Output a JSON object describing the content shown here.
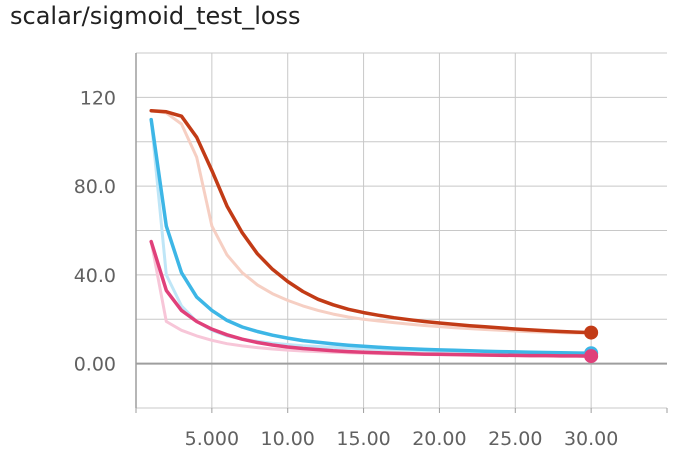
{
  "chart_data": {
    "type": "line",
    "title": "scalar/sigmoid_test_loss",
    "xlabel": "",
    "ylabel": "",
    "xlim": [
      0,
      35
    ],
    "ylim": [
      -20,
      140
    ],
    "grid": true,
    "legend": "none",
    "x_ticks": [
      {
        "value": 5,
        "label": "5.000"
      },
      {
        "value": 10,
        "label": "10.00"
      },
      {
        "value": 15,
        "label": "15.00"
      },
      {
        "value": 20,
        "label": "20.00"
      },
      {
        "value": 25,
        "label": "25.00"
      },
      {
        "value": 30,
        "label": "30.00"
      }
    ],
    "y_ticks": [
      {
        "value": 0,
        "label": "0.00"
      },
      {
        "value": 40,
        "label": "40.0"
      },
      {
        "value": 80,
        "label": "80.0"
      },
      {
        "value": 120,
        "label": "120"
      }
    ],
    "series": [
      {
        "color": "#c23b16",
        "raw_color": "#f6cfc3",
        "x": [
          1,
          2,
          3,
          4,
          5,
          6,
          7,
          8,
          9,
          10,
          11,
          12,
          13,
          14,
          15,
          16,
          17,
          18,
          19,
          20,
          21,
          22,
          23,
          24,
          25,
          26,
          27,
          28,
          29,
          30
        ],
        "values": [
          114,
          113.5,
          111.5,
          102,
          87,
          71,
          59,
          49.5,
          42.5,
          37,
          32.5,
          29,
          26.5,
          24.5,
          23,
          21.8,
          20.7,
          19.8,
          19,
          18.3,
          17.7,
          17.1,
          16.6,
          16.1,
          15.6,
          15.2,
          14.8,
          14.5,
          14.2,
          14
        ],
        "raw_values": [
          114,
          113,
          108,
          93,
          62,
          49,
          41,
          35.5,
          31.5,
          28.5,
          26,
          24,
          22.3,
          21,
          20,
          19.2,
          18.5,
          17.8,
          17.2,
          16.7,
          16.2,
          15.8,
          15.4,
          15,
          14.7,
          14.4,
          14.2,
          14,
          13.8,
          13.8
        ]
      },
      {
        "color": "#3db6e6",
        "raw_color": "#bfe6f7",
        "x": [
          1,
          2,
          3,
          4,
          5,
          6,
          7,
          8,
          9,
          10,
          11,
          12,
          13,
          14,
          15,
          16,
          17,
          18,
          19,
          20,
          21,
          22,
          23,
          24,
          25,
          26,
          27,
          28,
          29,
          30
        ],
        "values": [
          110,
          62,
          41,
          30,
          24,
          19.5,
          16.5,
          14.5,
          12.8,
          11.5,
          10.4,
          9.6,
          8.9,
          8.3,
          7.8,
          7.4,
          7.0,
          6.7,
          6.4,
          6.2,
          6.0,
          5.8,
          5.6,
          5.4,
          5.3,
          5.1,
          5.0,
          4.9,
          4.8,
          4.7
        ],
        "raw_values": [
          110,
          40,
          26,
          19,
          15,
          12.5,
          11,
          10,
          9.2,
          8.6,
          8.1,
          7.7,
          7.3,
          7.0,
          6.7,
          6.4,
          6.2,
          6.0,
          5.8,
          5.7,
          5.5,
          5.4,
          5.2,
          5.1,
          5.0,
          4.9,
          4.8,
          4.7,
          4.6,
          4.6
        ]
      },
      {
        "color": "#e0407a",
        "raw_color": "#f7c6d8",
        "x": [
          1,
          2,
          3,
          4,
          5,
          6,
          7,
          8,
          9,
          10,
          11,
          12,
          13,
          14,
          15,
          16,
          17,
          18,
          19,
          20,
          21,
          22,
          23,
          24,
          25,
          26,
          27,
          28,
          29,
          30
        ],
        "values": [
          55,
          33,
          24,
          19,
          15.5,
          13,
          11,
          9.5,
          8.4,
          7.5,
          6.8,
          6.3,
          5.8,
          5.4,
          5.1,
          4.9,
          4.7,
          4.5,
          4.3,
          4.2,
          4.1,
          4.0,
          3.9,
          3.8,
          3.7,
          3.6,
          3.6,
          3.5,
          3.5,
          3.4
        ],
        "raw_values": [
          55,
          19,
          15,
          12.5,
          10.5,
          9,
          8,
          7.2,
          6.6,
          6.1,
          5.7,
          5.4,
          5.1,
          4.9,
          4.7,
          4.5,
          4.4,
          4.2,
          4.1,
          4.0,
          3.9,
          3.8,
          3.7,
          3.6,
          3.6,
          3.5,
          3.5,
          3.4,
          3.4,
          3.3
        ]
      }
    ]
  }
}
